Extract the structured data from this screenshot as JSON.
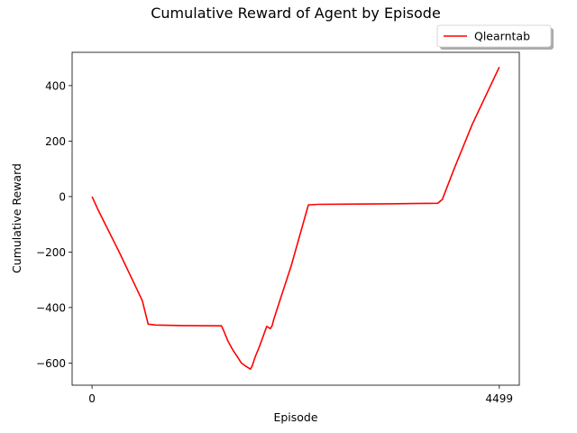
{
  "chart_data": {
    "type": "line",
    "title": "Cumulative Reward of Agent by Episode",
    "xlabel": "Episode",
    "ylabel": "Cumulative Reward",
    "xlim": [
      -220,
      4720
    ],
    "ylim": [
      -680,
      520
    ],
    "x_ticks": [
      0,
      4499
    ],
    "x_tick_labels": [
      "0",
      "4499"
    ],
    "y_ticks": [
      -600,
      -400,
      -200,
      0,
      200,
      400
    ],
    "y_tick_labels": [
      "−600",
      "−400",
      "−200",
      "0",
      "200",
      "400"
    ],
    "grid": false,
    "legend": {
      "placement": "top-right, outside above axes",
      "entries": [
        "Qlearntab"
      ]
    },
    "series": [
      {
        "name": "Qlearntab",
        "color": "#ff0000",
        "x": [
          0,
          70,
          300,
          555,
          620,
          700,
          1000,
          1430,
          1450,
          1500,
          1550,
          1600,
          1650,
          1700,
          1750,
          1770,
          1800,
          1850,
          1900,
          1930,
          1970,
          1990,
          2010,
          2050,
          2200,
          2390,
          2500,
          2950,
          3300,
          3570,
          3820,
          3870,
          4000,
          4200,
          4499
        ],
        "y": [
          0,
          -50,
          -200,
          -375,
          -460,
          -463,
          -465,
          -466,
          -480,
          -520,
          -550,
          -575,
          -600,
          -612,
          -622,
          -610,
          -580,
          -540,
          -495,
          -468,
          -476,
          -465,
          -440,
          -400,
          -250,
          -30,
          -28,
          -27,
          -26,
          -25,
          -24,
          -10,
          100,
          260,
          467
        ]
      }
    ]
  }
}
